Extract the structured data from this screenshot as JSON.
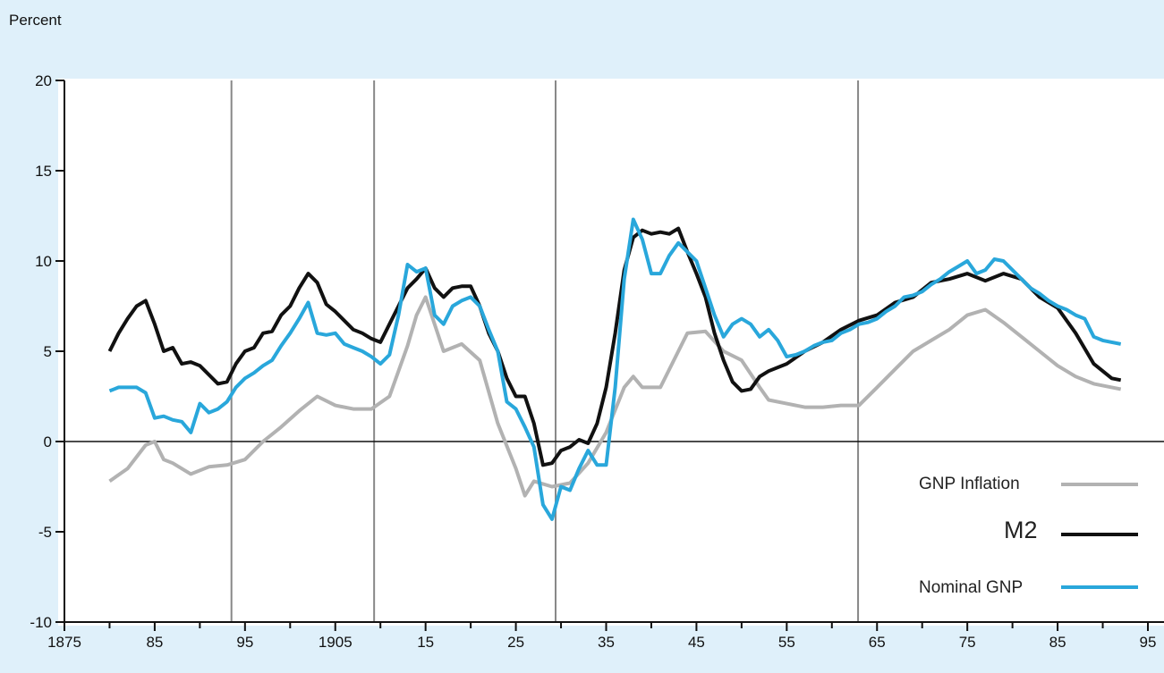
{
  "chart_data": {
    "type": "line",
    "ylabel": "Percent",
    "xlabel": "",
    "xlim": [
      1875,
      1995
    ],
    "ylim": [
      -10,
      20
    ],
    "x_tick_values": [
      1875,
      1885,
      1895,
      1905,
      1915,
      1925,
      1935,
      1945,
      1955,
      1965,
      1975,
      1985,
      1995
    ],
    "x_tick_labels": [
      "1875",
      "85",
      "95",
      "1905",
      "15",
      "25",
      "35",
      "45",
      "55",
      "65",
      "75",
      "85",
      "95"
    ],
    "y_tick_values": [
      20,
      15,
      10,
      5,
      0,
      -5,
      -10
    ],
    "y_tick_labels": [
      "20",
      "15",
      "10",
      "5",
      "0",
      "-5",
      "-10"
    ],
    "zero_line": 0,
    "vertical_markers": [
      1893.5,
      1909.3,
      1929.4,
      1962.9
    ],
    "grid": false,
    "legend_position": "bottom-right",
    "series": [
      {
        "name": "GNP Inflation",
        "color": "#b2b2b2",
        "points": [
          [
            1880,
            -2.2
          ],
          [
            1882,
            -1.5
          ],
          [
            1884,
            -0.2
          ],
          [
            1885,
            0
          ],
          [
            1886,
            -1
          ],
          [
            1887,
            -1.2
          ],
          [
            1889,
            -1.8
          ],
          [
            1891,
            -1.4
          ],
          [
            1893,
            -1.3
          ],
          [
            1895,
            -1
          ],
          [
            1897,
            0
          ],
          [
            1899,
            0.8
          ],
          [
            1901,
            1.7
          ],
          [
            1903,
            2.5
          ],
          [
            1905,
            2
          ],
          [
            1907,
            1.8
          ],
          [
            1909,
            1.8
          ],
          [
            1911,
            2.5
          ],
          [
            1913,
            5.3
          ],
          [
            1914,
            7
          ],
          [
            1915,
            8
          ],
          [
            1917,
            5
          ],
          [
            1919,
            5.4
          ],
          [
            1921,
            4.5
          ],
          [
            1923,
            1
          ],
          [
            1925,
            -1.5
          ],
          [
            1926,
            -3
          ],
          [
            1927,
            -2.2
          ],
          [
            1929,
            -2.5
          ],
          [
            1931,
            -2.3
          ],
          [
            1933,
            -1.2
          ],
          [
            1935,
            0.5
          ],
          [
            1937,
            3
          ],
          [
            1938,
            3.6
          ],
          [
            1939,
            3
          ],
          [
            1941,
            3
          ],
          [
            1943,
            5
          ],
          [
            1944,
            6
          ],
          [
            1946,
            6.1
          ],
          [
            1948,
            5
          ],
          [
            1950,
            4.5
          ],
          [
            1952,
            3
          ],
          [
            1953,
            2.3
          ],
          [
            1955,
            2.1
          ],
          [
            1957,
            1.9
          ],
          [
            1959,
            1.9
          ],
          [
            1961,
            2
          ],
          [
            1963,
            2
          ],
          [
            1965,
            3
          ],
          [
            1967,
            4
          ],
          [
            1969,
            5
          ],
          [
            1971,
            5.6
          ],
          [
            1973,
            6.2
          ],
          [
            1975,
            7
          ],
          [
            1977,
            7.3
          ],
          [
            1979,
            6.6
          ],
          [
            1981,
            5.8
          ],
          [
            1983,
            5
          ],
          [
            1985,
            4.2
          ],
          [
            1987,
            3.6
          ],
          [
            1989,
            3.2
          ],
          [
            1991,
            3
          ],
          [
            1992,
            2.9
          ]
        ]
      },
      {
        "name": "M2",
        "color": "#111111",
        "points": [
          [
            1880,
            5
          ],
          [
            1881,
            6
          ],
          [
            1882,
            6.8
          ],
          [
            1883,
            7.5
          ],
          [
            1884,
            7.8
          ],
          [
            1885,
            6.5
          ],
          [
            1886,
            5
          ],
          [
            1887,
            5.2
          ],
          [
            1888,
            4.3
          ],
          [
            1889,
            4.4
          ],
          [
            1890,
            4.2
          ],
          [
            1891,
            3.7
          ],
          [
            1892,
            3.2
          ],
          [
            1893,
            3.3
          ],
          [
            1894,
            4.3
          ],
          [
            1895,
            5
          ],
          [
            1896,
            5.2
          ],
          [
            1897,
            6
          ],
          [
            1898,
            6.1
          ],
          [
            1899,
            7
          ],
          [
            1900,
            7.5
          ],
          [
            1901,
            8.5
          ],
          [
            1902,
            9.3
          ],
          [
            1903,
            8.8
          ],
          [
            1904,
            7.6
          ],
          [
            1905,
            7.2
          ],
          [
            1906,
            6.7
          ],
          [
            1907,
            6.2
          ],
          [
            1908,
            6
          ],
          [
            1909,
            5.7
          ],
          [
            1910,
            5.5
          ],
          [
            1911,
            6.5
          ],
          [
            1912,
            7.5
          ],
          [
            1913,
            8.5
          ],
          [
            1914,
            9
          ],
          [
            1915,
            9.6
          ],
          [
            1916,
            8.5
          ],
          [
            1917,
            8
          ],
          [
            1918,
            8.5
          ],
          [
            1919,
            8.6
          ],
          [
            1920,
            8.6
          ],
          [
            1921,
            7.5
          ],
          [
            1922,
            6
          ],
          [
            1923,
            5
          ],
          [
            1924,
            3.5
          ],
          [
            1925,
            2.5
          ],
          [
            1926,
            2.5
          ],
          [
            1927,
            1
          ],
          [
            1928,
            -1.3
          ],
          [
            1929,
            -1.2
          ],
          [
            1930,
            -0.5
          ],
          [
            1931,
            -0.3
          ],
          [
            1932,
            0.1
          ],
          [
            1933,
            -0.1
          ],
          [
            1934,
            1
          ],
          [
            1935,
            3
          ],
          [
            1936,
            6
          ],
          [
            1937,
            9.5
          ],
          [
            1938,
            11.3
          ],
          [
            1939,
            11.7
          ],
          [
            1940,
            11.5
          ],
          [
            1941,
            11.6
          ],
          [
            1942,
            11.5
          ],
          [
            1943,
            11.8
          ],
          [
            1944,
            10.5
          ],
          [
            1945,
            9.3
          ],
          [
            1946,
            8
          ],
          [
            1947,
            6
          ],
          [
            1948,
            4.5
          ],
          [
            1949,
            3.3
          ],
          [
            1950,
            2.8
          ],
          [
            1951,
            2.9
          ],
          [
            1952,
            3.6
          ],
          [
            1953,
            3.9
          ],
          [
            1955,
            4.3
          ],
          [
            1957,
            5
          ],
          [
            1959,
            5.5
          ],
          [
            1961,
            6.2
          ],
          [
            1963,
            6.7
          ],
          [
            1965,
            7
          ],
          [
            1967,
            7.7
          ],
          [
            1969,
            8
          ],
          [
            1971,
            8.8
          ],
          [
            1973,
            9
          ],
          [
            1975,
            9.3
          ],
          [
            1977,
            8.9
          ],
          [
            1979,
            9.3
          ],
          [
            1981,
            9
          ],
          [
            1983,
            8
          ],
          [
            1985,
            7.4
          ],
          [
            1987,
            6
          ],
          [
            1989,
            4.3
          ],
          [
            1991,
            3.5
          ],
          [
            1992,
            3.4
          ]
        ]
      },
      {
        "name": "Nominal GNP",
        "color": "#29a7db",
        "points": [
          [
            1880,
            2.8
          ],
          [
            1881,
            3
          ],
          [
            1883,
            3
          ],
          [
            1884,
            2.7
          ],
          [
            1885,
            1.3
          ],
          [
            1886,
            1.4
          ],
          [
            1887,
            1.2
          ],
          [
            1888,
            1.1
          ],
          [
            1889,
            0.5
          ],
          [
            1890,
            2.1
          ],
          [
            1891,
            1.6
          ],
          [
            1892,
            1.8
          ],
          [
            1893,
            2.2
          ],
          [
            1894,
            3
          ],
          [
            1895,
            3.5
          ],
          [
            1896,
            3.8
          ],
          [
            1897,
            4.2
          ],
          [
            1898,
            4.5
          ],
          [
            1899,
            5.3
          ],
          [
            1900,
            6
          ],
          [
            1901,
            6.8
          ],
          [
            1902,
            7.7
          ],
          [
            1903,
            6
          ],
          [
            1904,
            5.9
          ],
          [
            1905,
            6
          ],
          [
            1906,
            5.4
          ],
          [
            1907,
            5.2
          ],
          [
            1908,
            5
          ],
          [
            1909,
            4.7
          ],
          [
            1910,
            4.3
          ],
          [
            1911,
            4.8
          ],
          [
            1912,
            7
          ],
          [
            1913,
            9.8
          ],
          [
            1914,
            9.4
          ],
          [
            1915,
            9.6
          ],
          [
            1916,
            7
          ],
          [
            1917,
            6.5
          ],
          [
            1918,
            7.5
          ],
          [
            1919,
            7.8
          ],
          [
            1920,
            8
          ],
          [
            1921,
            7.5
          ],
          [
            1922,
            6.2
          ],
          [
            1923,
            5
          ],
          [
            1924,
            2.2
          ],
          [
            1925,
            1.8
          ],
          [
            1926,
            0.8
          ],
          [
            1927,
            -0.3
          ],
          [
            1928,
            -3.5
          ],
          [
            1929,
            -4.3
          ],
          [
            1930,
            -2.5
          ],
          [
            1931,
            -2.7
          ],
          [
            1932,
            -1.5
          ],
          [
            1933,
            -0.5
          ],
          [
            1934,
            -1.3
          ],
          [
            1935,
            -1.3
          ],
          [
            1936,
            3
          ],
          [
            1937,
            9
          ],
          [
            1938,
            12.3
          ],
          [
            1939,
            11.2
          ],
          [
            1940,
            9.3
          ],
          [
            1941,
            9.3
          ],
          [
            1942,
            10.3
          ],
          [
            1943,
            11
          ],
          [
            1944,
            10.5
          ],
          [
            1945,
            10
          ],
          [
            1946,
            8.5
          ],
          [
            1947,
            7
          ],
          [
            1948,
            5.8
          ],
          [
            1949,
            6.5
          ],
          [
            1950,
            6.8
          ],
          [
            1951,
            6.5
          ],
          [
            1952,
            5.8
          ],
          [
            1953,
            6.2
          ],
          [
            1954,
            5.6
          ],
          [
            1955,
            4.7
          ],
          [
            1956,
            4.8
          ],
          [
            1957,
            5
          ],
          [
            1958,
            5.3
          ],
          [
            1959,
            5.5
          ],
          [
            1960,
            5.6
          ],
          [
            1961,
            6
          ],
          [
            1962,
            6.2
          ],
          [
            1963,
            6.5
          ],
          [
            1964,
            6.6
          ],
          [
            1965,
            6.8
          ],
          [
            1966,
            7.2
          ],
          [
            1967,
            7.5
          ],
          [
            1968,
            8
          ],
          [
            1969,
            8.1
          ],
          [
            1970,
            8.3
          ],
          [
            1971,
            8.7
          ],
          [
            1972,
            9
          ],
          [
            1973,
            9.4
          ],
          [
            1974,
            9.7
          ],
          [
            1975,
            10
          ],
          [
            1976,
            9.3
          ],
          [
            1977,
            9.5
          ],
          [
            1978,
            10.1
          ],
          [
            1979,
            10
          ],
          [
            1980,
            9.5
          ],
          [
            1981,
            9
          ],
          [
            1982,
            8.5
          ],
          [
            1983,
            8.2
          ],
          [
            1984,
            7.8
          ],
          [
            1985,
            7.5
          ],
          [
            1986,
            7.3
          ],
          [
            1987,
            7
          ],
          [
            1988,
            6.8
          ],
          [
            1989,
            5.8
          ],
          [
            1990,
            5.6
          ],
          [
            1991,
            5.5
          ],
          [
            1992,
            5.4
          ]
        ]
      }
    ]
  },
  "legend": {
    "gnp_inflation": "GNP Inflation",
    "m2": "M2",
    "nominal_gnp": "Nominal GNP"
  }
}
